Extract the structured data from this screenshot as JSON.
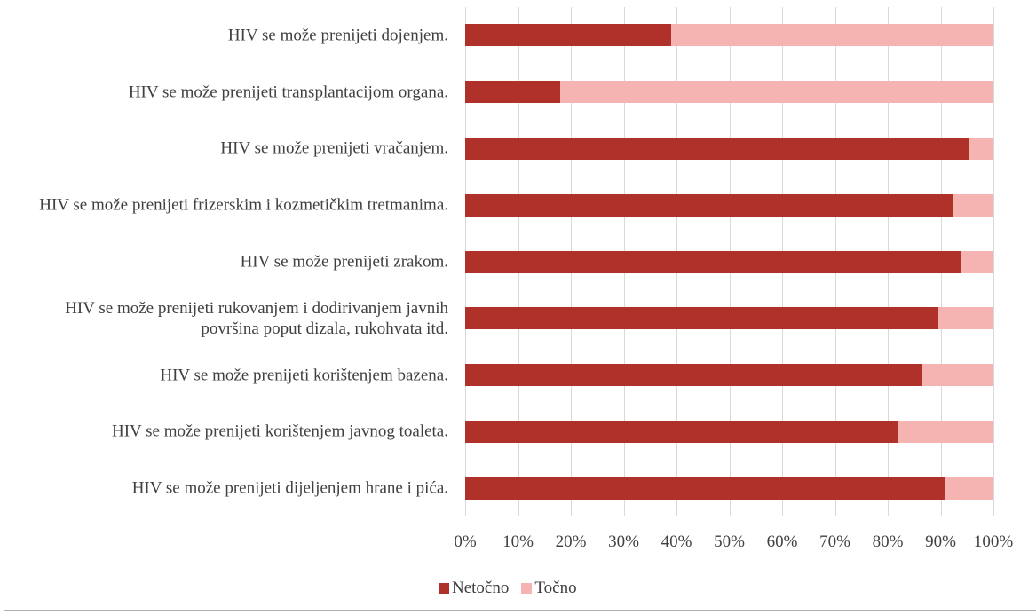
{
  "chart_data": {
    "type": "stacked_barh",
    "categories": [
      "HIV se može prenijeti dojenjem.",
      "HIV se može prenijeti transplantacijom organa.",
      "HIV se može prenijeti vračanjem.",
      "HIV se može prenijeti frizerskim i kozmetičkim tretmanima.",
      "HIV se može prenijeti zrakom.",
      "HIV se može prenijeti rukovanjem i dodirivanjem javnih površina poput dizala, rukohvata itd.",
      "HIV se može prenijeti korištenjem bazena.",
      "HIV se može prenijeti korištenjem javnog toaleta.",
      "HIV se može prenijeti dijeljenjem hrane i pića."
    ],
    "series": [
      {
        "name": "Netočno",
        "color": "#b0302a",
        "values": [
          39,
          18,
          95.5,
          92.5,
          94,
          89.5,
          86.5,
          82,
          91
        ]
      },
      {
        "name": "Točno",
        "color": "#f5b4b1",
        "values": [
          61,
          82,
          4.5,
          7.5,
          6,
          10.5,
          13.5,
          18,
          9
        ]
      }
    ],
    "xlim": [
      0,
      100
    ],
    "xticks": [
      {
        "value": 0,
        "label": "0%"
      },
      {
        "value": 10,
        "label": "10%"
      },
      {
        "value": 20,
        "label": "20%"
      },
      {
        "value": 30,
        "label": "30%"
      },
      {
        "value": 40,
        "label": "40%"
      },
      {
        "value": 50,
        "label": "50%"
      },
      {
        "value": 60,
        "label": "60%"
      },
      {
        "value": 70,
        "label": "70%"
      },
      {
        "value": 80,
        "label": "80%"
      },
      {
        "value": 90,
        "label": "90%"
      },
      {
        "value": 100,
        "label": "100%"
      }
    ],
    "grid": true,
    "legend": "bottom"
  }
}
